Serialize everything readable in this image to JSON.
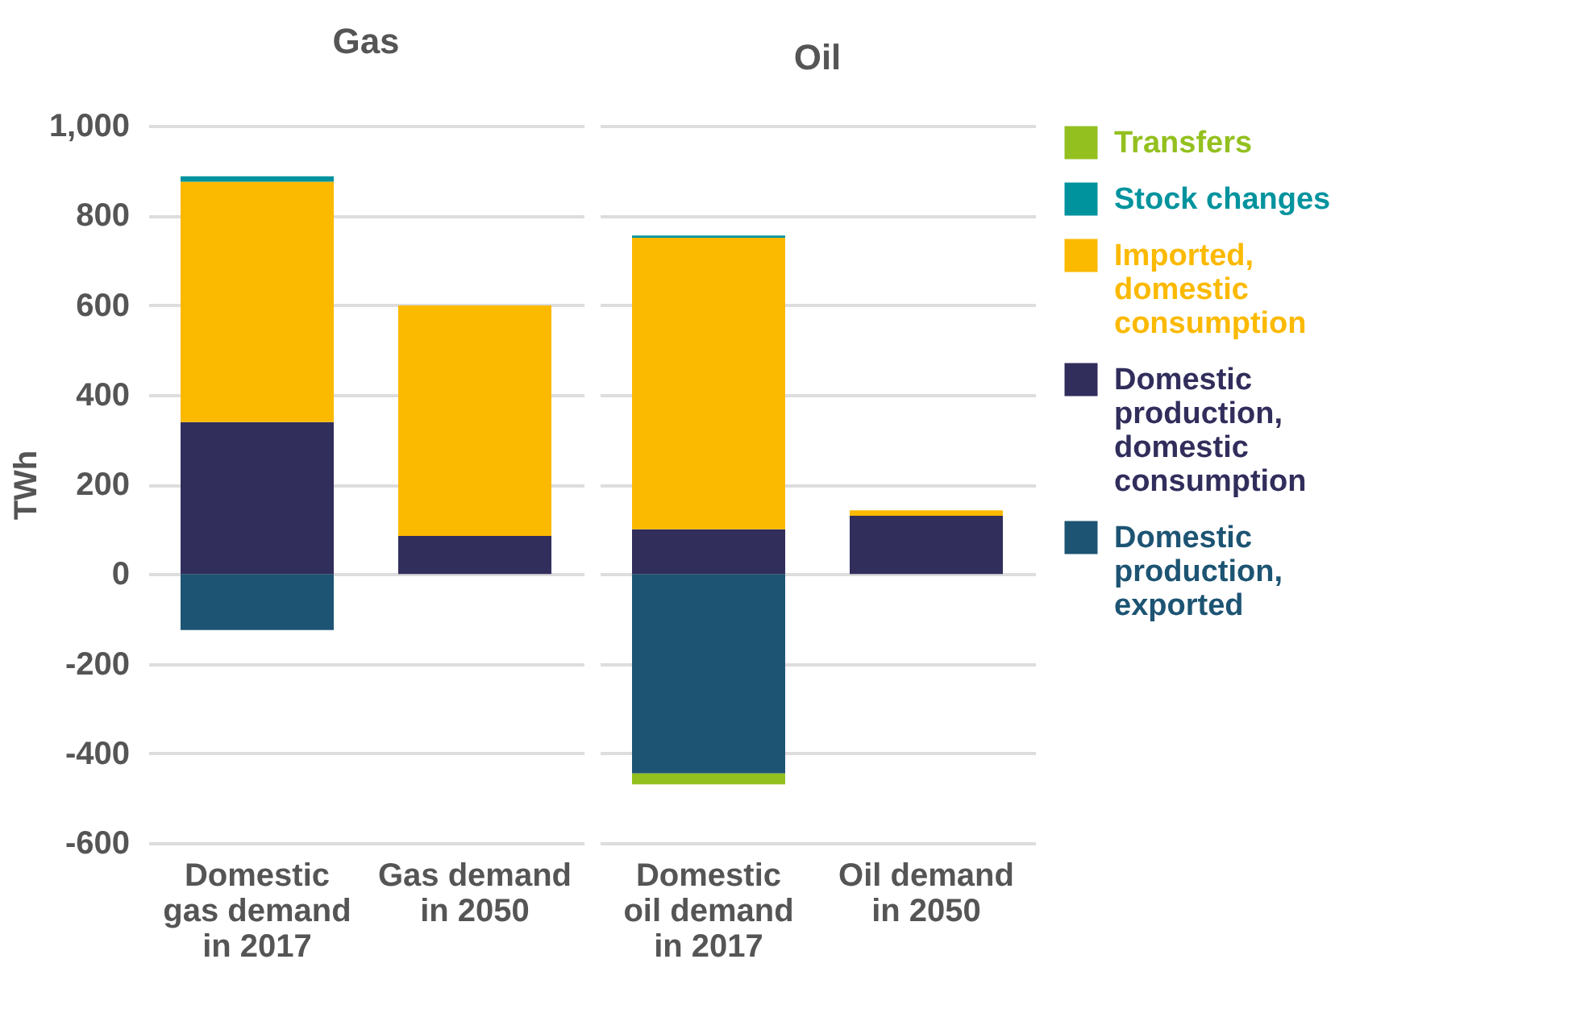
{
  "chart_data": [
    {
      "type": "bar",
      "title": "Gas",
      "ylabel": "TWh",
      "stacked": true,
      "categories": [
        "Domestic gas demand in 2017",
        "Gas demand in 2050"
      ],
      "ylim": [
        -600,
        1000
      ],
      "yticks": [
        {
          "value": -600,
          "label": "-600"
        },
        {
          "value": -400,
          "label": "-400"
        },
        {
          "value": -200,
          "label": "-200"
        },
        0,
        200,
        400,
        600,
        800,
        {
          "value": 1000,
          "label": "1,000"
        }
      ],
      "grid": "y",
      "legend": "right",
      "series": [
        {
          "name": "Domestic production, exported",
          "color": "#1d5473",
          "values": [
            -125,
            null
          ]
        },
        {
          "name": "Domestic production, domestic consumption",
          "color": "#312e5c",
          "values": [
            339,
            85
          ]
        },
        {
          "name": "Imported, domestic consumption",
          "color": "#fbb900",
          "values": [
            536,
            514
          ]
        },
        {
          "name": "Stock changes",
          "color": "#00939e",
          "values": [
            12,
            null
          ]
        }
      ]
    },
    {
      "type": "bar",
      "title": "Oil",
      "stacked": true,
      "categories": [
        "Domestic oil demand in 2017",
        "Oil demand in 2050"
      ],
      "ylim": [
        -600,
        1000
      ],
      "yticks": [
        {
          "value": -600,
          "label": null
        },
        {
          "value": -400,
          "label": null
        },
        {
          "value": -200,
          "label": null
        },
        {
          "value": 0,
          "label": null
        },
        {
          "value": 200,
          "label": null
        },
        {
          "value": 400,
          "label": null
        },
        {
          "value": 600,
          "label": null
        },
        {
          "value": 800,
          "label": null
        },
        {
          "value": 1000,
          "label": null
        }
      ],
      "grid": "y",
      "tick_labels": "x",
      "legend": "right",
      "series": [
        {
          "name": "Domestic production, exported",
          "color": "#1d5473",
          "values": [
            -445,
            null
          ]
        },
        {
          "name": "Domestic production, domestic consumption",
          "color": "#312e5c",
          "values": [
            100,
            130
          ]
        },
        {
          "name": "Imported, domestic consumption",
          "color": "#fbb900",
          "values": [
            650,
            12
          ]
        },
        {
          "name": "Stock changes",
          "color": "#00939e",
          "values": [
            5,
            null
          ]
        },
        {
          "name": "Transfers",
          "color": "#93c01f",
          "values": [
            -24,
            null
          ]
        }
      ]
    }
  ]
}
